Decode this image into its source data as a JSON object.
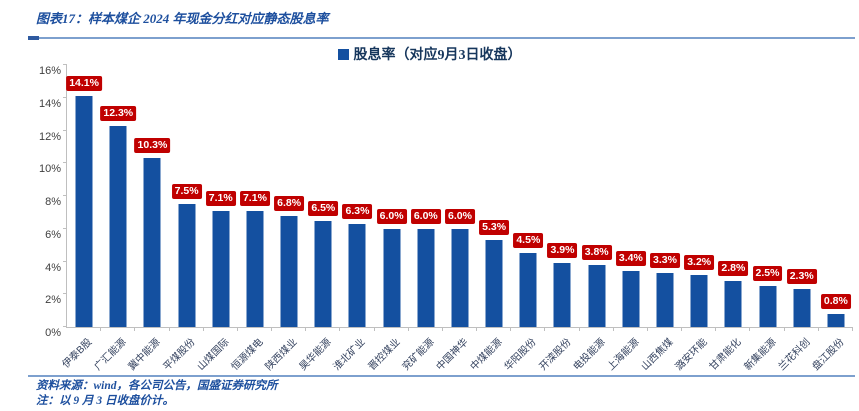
{
  "title": "图表17：样本煤企 2024 年现金分红对应静态股息率",
  "legend": {
    "label": "股息率（对应9月3日收盘）"
  },
  "footer": {
    "source": "资料来源：wind，各公司公告，国盛证券研究所",
    "note": "注：以 9 月 3 日收盘价计。"
  },
  "colors": {
    "bar": "#1450A0",
    "value_label_bg": "#C00000",
    "value_label_text": "#FFFFFF",
    "title_text": "#1D4F9E",
    "rule": "#7DA0CE",
    "rule_dark": "#2E5AA0",
    "axis": "#BFBFBF",
    "tick_text": "#404040",
    "x_label_text": "#33415E"
  },
  "chart_data": {
    "type": "bar",
    "title": "股息率（对应9月3日收盘）",
    "categories": [
      "伊泰B股",
      "广汇能源",
      "冀中能源",
      "平煤股份",
      "山煤国际",
      "恒源煤电",
      "陕西煤业",
      "昊华能源",
      "淮北矿业",
      "晋控煤业",
      "兖矿能源",
      "中国神华",
      "中煤能源",
      "华阳股份",
      "开滦股份",
      "电投能源",
      "上海能源",
      "山西焦煤",
      "潞安环能",
      "甘肃能化",
      "新集能源",
      "兰花科创",
      "盘江股份"
    ],
    "values": [
      14.1,
      12.3,
      10.3,
      7.5,
      7.1,
      7.1,
      6.8,
      6.5,
      6.3,
      6.0,
      6.0,
      6.0,
      5.3,
      4.5,
      3.9,
      3.8,
      3.4,
      3.3,
      3.2,
      2.8,
      2.5,
      2.3,
      0.8
    ],
    "data_labels": [
      "14.1%",
      "12.3%",
      "10.3%",
      "7.5%",
      "7.1%",
      "7.1%",
      "6.8%",
      "6.5%",
      "6.3%",
      "6.0%",
      "6.0%",
      "6.0%",
      "5.3%",
      "4.5%",
      "3.9%",
      "3.8%",
      "3.4%",
      "3.3%",
      "3.2%",
      "2.8%",
      "2.5%",
      "2.3%",
      "0.8%"
    ],
    "xlabel": "",
    "ylabel": "",
    "ylim": [
      0,
      16
    ],
    "ytick_step": 2,
    "ytick_labels": [
      "0%",
      "2%",
      "4%",
      "6%",
      "8%",
      "10%",
      "12%",
      "14%",
      "16%"
    ],
    "grid": false,
    "legend_position": "top-center"
  }
}
